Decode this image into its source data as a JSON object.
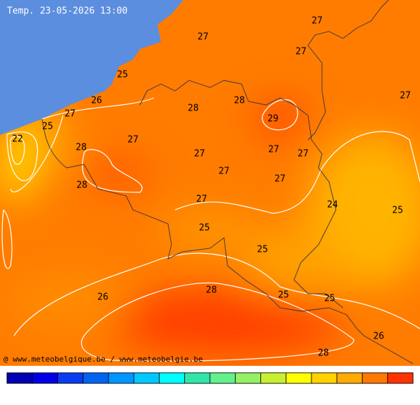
{
  "title": "Temp. 23-05-2026 13:00",
  "credit": "@ www.meteobelgique.be / www.meteobelgie.be",
  "labels": [
    27,
    27,
    27,
    27,
    25,
    26,
    27,
    28,
    28,
    29,
    25,
    22,
    28,
    27,
    27,
    27,
    27,
    27,
    28,
    27,
    27,
    24,
    25,
    25,
    25,
    28,
    25,
    25,
    26,
    26,
    28
  ],
  "scale_colors": [
    "#0000b4",
    "#0000e6",
    "#0a3cf0",
    "#0064f0",
    "#0096ff",
    "#00c8ff",
    "#00ffff",
    "#32e6aa",
    "#64f08c",
    "#96f064",
    "#c8f032",
    "#ffff00",
    "#ffd200",
    "#ffaa00",
    "#ff7800",
    "#ff3200"
  ]
}
